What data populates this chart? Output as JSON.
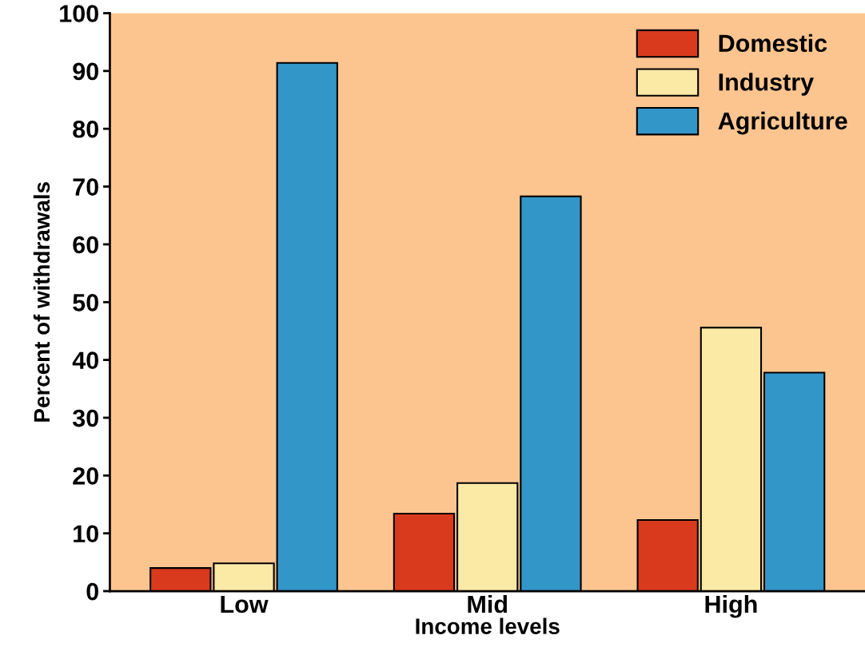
{
  "chart_data": {
    "type": "bar",
    "xlabel": "Income levels",
    "ylabel": "Percent of withdrawals",
    "categories": [
      "Low",
      "Mid",
      "High"
    ],
    "series": [
      {
        "name": "Domestic",
        "color": "#d93a1e",
        "values": [
          4,
          13.4,
          12.3
        ]
      },
      {
        "name": "Industry",
        "color": "#fbe9a6",
        "values": [
          4.8,
          18.7,
          45.6
        ]
      },
      {
        "name": "Agriculture",
        "color": "#3396c9",
        "values": [
          91.4,
          68.3,
          37.8
        ]
      }
    ],
    "ylim": [
      0,
      100
    ],
    "yticks": [
      0,
      10,
      20,
      30,
      40,
      50,
      60,
      70,
      80,
      90,
      100
    ],
    "grid": false,
    "legend": "top right"
  }
}
